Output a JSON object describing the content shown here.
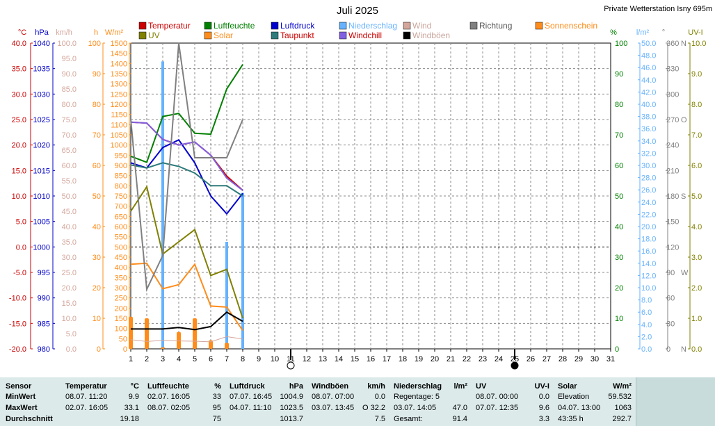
{
  "header": {
    "title": "Juli 2025",
    "station": "Private Wetterstation Isny 695m"
  },
  "units": {
    "temp": "°C",
    "press": "hPa",
    "wind": "km/h",
    "sunh": "h",
    "solar": "W/m²",
    "hum": "%",
    "rain": "l/m²",
    "dir": "°",
    "uv": "UV-I"
  },
  "colors": {
    "temperatur": "#cc0000",
    "luftfeuchte": "#008000",
    "luftdruck": "#0000cc",
    "niederschlag": "#66b2ff",
    "wind": "#d4a59a",
    "richtung": "#808080",
    "sonnenschein": "#ff8c1a",
    "uv": "#808000",
    "solar": "#ff8c1a",
    "taupunkt": "#2f7b7b",
    "windchill": "#8060e0",
    "windboeen": "#000000"
  },
  "legend": [
    {
      "key": "temperatur",
      "label": "Temperatur"
    },
    {
      "key": "luftfeuchte",
      "label": "Luftfeuchte"
    },
    {
      "key": "luftdruck",
      "label": "Luftdruck"
    },
    {
      "key": "niederschlag",
      "label": "Niederschlag"
    },
    {
      "key": "wind",
      "label": "Wind"
    },
    {
      "key": "richtung",
      "label": "Richtung"
    },
    {
      "key": "sonnenschein",
      "label": "Sonnenschein"
    },
    {
      "key": "uv",
      "label": "UV"
    },
    {
      "key": "solar",
      "label": "Solar"
    },
    {
      "key": "taupunkt",
      "label": "Taupunkt"
    },
    {
      "key": "windchill",
      "label": "Windchill"
    },
    {
      "key": "windboeen",
      "label": "Windböen"
    }
  ],
  "chart_data": {
    "type": "line",
    "title": "Juli 2025",
    "x": [
      1,
      2,
      3,
      4,
      5,
      6,
      7,
      8,
      9,
      10,
      11,
      12,
      13,
      14,
      15,
      16,
      17,
      18,
      19,
      20,
      21,
      22,
      23,
      24,
      25,
      26,
      27,
      28,
      29,
      30,
      31
    ],
    "xlim": [
      1,
      31
    ],
    "axes": {
      "temp": {
        "min": -20,
        "max": 40,
        "ticks": [
          "40.0",
          "35.0",
          "30.0",
          "25.0",
          "20.0",
          "15.0",
          "10.0",
          "5.0",
          "0.0",
          "-5.0",
          "-10.0",
          "-15.0",
          "-20.0"
        ]
      },
      "press": {
        "min": 980,
        "max": 1040,
        "ticks": [
          "1040",
          "1035",
          "1030",
          "1025",
          "1020",
          "1015",
          "1010",
          "1005",
          "1000",
          "995",
          "990",
          "985",
          "980"
        ]
      },
      "wind": {
        "min": 0,
        "max": 100,
        "ticks": [
          "100.0",
          "95.0",
          "90.0",
          "85.0",
          "80.0",
          "75.0",
          "70.0",
          "65.0",
          "60.0",
          "55.0",
          "50.0",
          "45.0",
          "40.0",
          "35.0",
          "30.0",
          "25.0",
          "20.0",
          "15.0",
          "10.0",
          "5.0",
          "0.0"
        ]
      },
      "sunh": {
        "min": 0,
        "max": 100,
        "ticks": [
          "100",
          "90",
          "80",
          "70",
          "60",
          "50",
          "40",
          "30",
          "20",
          "10",
          "0"
        ]
      },
      "solar": {
        "min": 0,
        "max": 1500,
        "ticks": [
          "1500",
          "1450",
          "1400",
          "1350",
          "1300",
          "1250",
          "1200",
          "1150",
          "1100",
          "1050",
          "1000",
          "950",
          "900",
          "850",
          "800",
          "750",
          "700",
          "650",
          "600",
          "550",
          "500",
          "450",
          "400",
          "350",
          "300",
          "250",
          "200",
          "150",
          "100",
          "50",
          "0"
        ]
      },
      "hum": {
        "min": 0,
        "max": 100,
        "ticks": [
          "100",
          "90",
          "80",
          "70",
          "60",
          "50",
          "40",
          "30",
          "20",
          "10",
          "0"
        ]
      },
      "rain": {
        "min": 0,
        "max": 50,
        "ticks": [
          "50.0",
          "48.0",
          "46.0",
          "44.0",
          "42.0",
          "40.0",
          "38.0",
          "36.0",
          "34.0",
          "32.0",
          "30.0",
          "28.0",
          "26.0",
          "24.0",
          "22.0",
          "20.0",
          "18.0",
          "16.0",
          "14.0",
          "12.0",
          "10.0",
          "8.0",
          "6.0",
          "4.0",
          "2.0",
          "0.0"
        ]
      },
      "dir": {
        "min": 0,
        "max": 360,
        "ticks": [
          "360",
          "330",
          "300",
          "270",
          "240",
          "210",
          "180",
          "150",
          "120",
          "90",
          "60",
          "30",
          "0"
        ]
      },
      "dirlabels": [
        "N",
        "W",
        "S",
        "O",
        "N"
      ],
      "uv": {
        "min": 0,
        "max": 10,
        "ticks": [
          "10.0",
          "9.0",
          "8.0",
          "7.0",
          "6.0",
          "5.0",
          "4.0",
          "3.0",
          "2.0",
          "1.0",
          "0.0"
        ]
      }
    },
    "series": [
      {
        "key": "temperatur",
        "axis": "temp",
        "x": [
          1,
          2,
          3,
          4,
          5,
          6,
          7,
          8
        ],
        "values": [
          24.5,
          24.3,
          21.1,
          20.0,
          20.6,
          18.0,
          13.9,
          11.1
        ]
      },
      {
        "key": "luftfeuchte",
        "axis": "hum",
        "x": [
          1,
          2,
          3,
          4,
          5,
          6,
          7,
          8
        ],
        "values": [
          63.0,
          61.0,
          76.0,
          77.0,
          70.5,
          70.2,
          85.0,
          93.0
        ]
      },
      {
        "key": "luftdruck",
        "axis": "press",
        "x": [
          1,
          2,
          3,
          4,
          5,
          6,
          7,
          8
        ],
        "values": [
          1016.5,
          1015.5,
          1019.5,
          1021.0,
          1016.5,
          1010.0,
          1006.5,
          1010.5
        ]
      },
      {
        "key": "taupunkt",
        "axis": "temp",
        "x": [
          1,
          2,
          3,
          4,
          5,
          6,
          7,
          8
        ],
        "values": [
          16.1,
          15.5,
          16.5,
          15.8,
          14.5,
          12.0,
          12.0,
          10.0
        ]
      },
      {
        "key": "windchill",
        "axis": "temp",
        "x": [
          1,
          2,
          3,
          4,
          5,
          6,
          7,
          8
        ],
        "values": [
          24.5,
          24.3,
          21.1,
          20.0,
          20.6,
          18.0,
          13.5,
          11.1
        ]
      },
      {
        "key": "uv",
        "axis": "uv",
        "x": [
          1,
          2,
          3,
          4,
          5,
          6,
          7,
          8
        ],
        "values": [
          4.5,
          5.3,
          3.1,
          3.5,
          3.9,
          2.4,
          2.6,
          1.0
        ]
      },
      {
        "key": "solar",
        "axis": "solar",
        "x": [
          1,
          2,
          3,
          4,
          5,
          6,
          7,
          8
        ],
        "values": [
          415,
          420,
          295,
          315,
          415,
          210,
          205,
          90
        ]
      },
      {
        "key": "richtung",
        "axis": "dir",
        "x": [
          1,
          2,
          3,
          4,
          5,
          6,
          7,
          8
        ],
        "values": [
          270,
          70,
          110,
          360,
          225,
          225,
          225,
          270
        ]
      },
      {
        "key": "windboeen",
        "axis": "wind",
        "x": [
          1,
          2,
          3,
          4,
          5,
          6,
          7,
          8
        ],
        "values": [
          6.5,
          6.5,
          6.5,
          7.0,
          6.3,
          7.3,
          12.0,
          9.0
        ]
      },
      {
        "key": "wind",
        "axis": "wind",
        "x": [
          1,
          2,
          3,
          4,
          5,
          6,
          7,
          8
        ],
        "values": [
          3.0,
          2.4,
          2.8,
          2.6,
          2.5,
          2.3,
          4.0,
          3.2
        ]
      }
    ],
    "bars": [
      {
        "key": "niederschlag",
        "axis": "rain",
        "x": [
          1,
          2,
          3,
          4,
          5,
          6,
          7,
          8
        ],
        "values": [
          0.1,
          0.2,
          47.0,
          0.5,
          0.0,
          0.3,
          17.5,
          25.5
        ]
      },
      {
        "key": "sonnenschein",
        "axis": "sunh",
        "x": [
          1,
          2,
          3,
          4,
          5,
          6,
          7,
          8
        ],
        "values": [
          10.5,
          10.0,
          0.5,
          5.5,
          10.0,
          2.8,
          2.0,
          0.0
        ]
      }
    ],
    "moon": [
      {
        "day": 11,
        "phase": "full"
      },
      {
        "day": 25,
        "phase": "new"
      }
    ]
  },
  "summary": {
    "row_labels": [
      "Sensor",
      "MinWert",
      "MaxWert",
      "Durchschnitt"
    ],
    "columns": [
      {
        "name": "Temperatur",
        "unit": "°C",
        "min_time": "08.07.  11:20",
        "min": "9.9",
        "max_time": "02.07.  16:05",
        "max": "33.1",
        "avg": "19.18"
      },
      {
        "name": "Luftfeuchte",
        "unit": "%",
        "min_time": "02.07.  16:05",
        "min": "33",
        "max_time": "08.07.  02:05",
        "max": "95",
        "avg": "75"
      },
      {
        "name": "Luftdruck",
        "unit": "hPa",
        "min_time": "07.07.  16:45",
        "min": "1004.9",
        "max_time": "04.07.  11:10",
        "max": "1023.5",
        "avg": "1013.7"
      },
      {
        "name": "Windböen",
        "unit": "km/h",
        "min_time": "08.07.  07:00",
        "min": "0.0",
        "max_time": "03.07.  13:45",
        "max": "O  32.2",
        "avg": "7.5"
      },
      {
        "name": "Niederschlag",
        "unit": "l/m²",
        "min_time": "Regentage: 5",
        "min": "",
        "max_time": "03.07.  14:05",
        "max": "47.0",
        "avg_label": "Gesamt:",
        "avg": "91.4"
      },
      {
        "name": "UV",
        "unit": "UV-I",
        "min_time": "08.07.  00:00",
        "min": "0.0",
        "max_time": "07.07.  12:35",
        "max": "9.6",
        "avg": "3.3"
      },
      {
        "name": "Solar",
        "unit": "W/m²",
        "min_time": "Elevation",
        "min": "59.532",
        "max_time": "04.07.  13:00",
        "max": "1063",
        "avg_label": "43:35 h",
        "avg": "292.7"
      }
    ]
  }
}
